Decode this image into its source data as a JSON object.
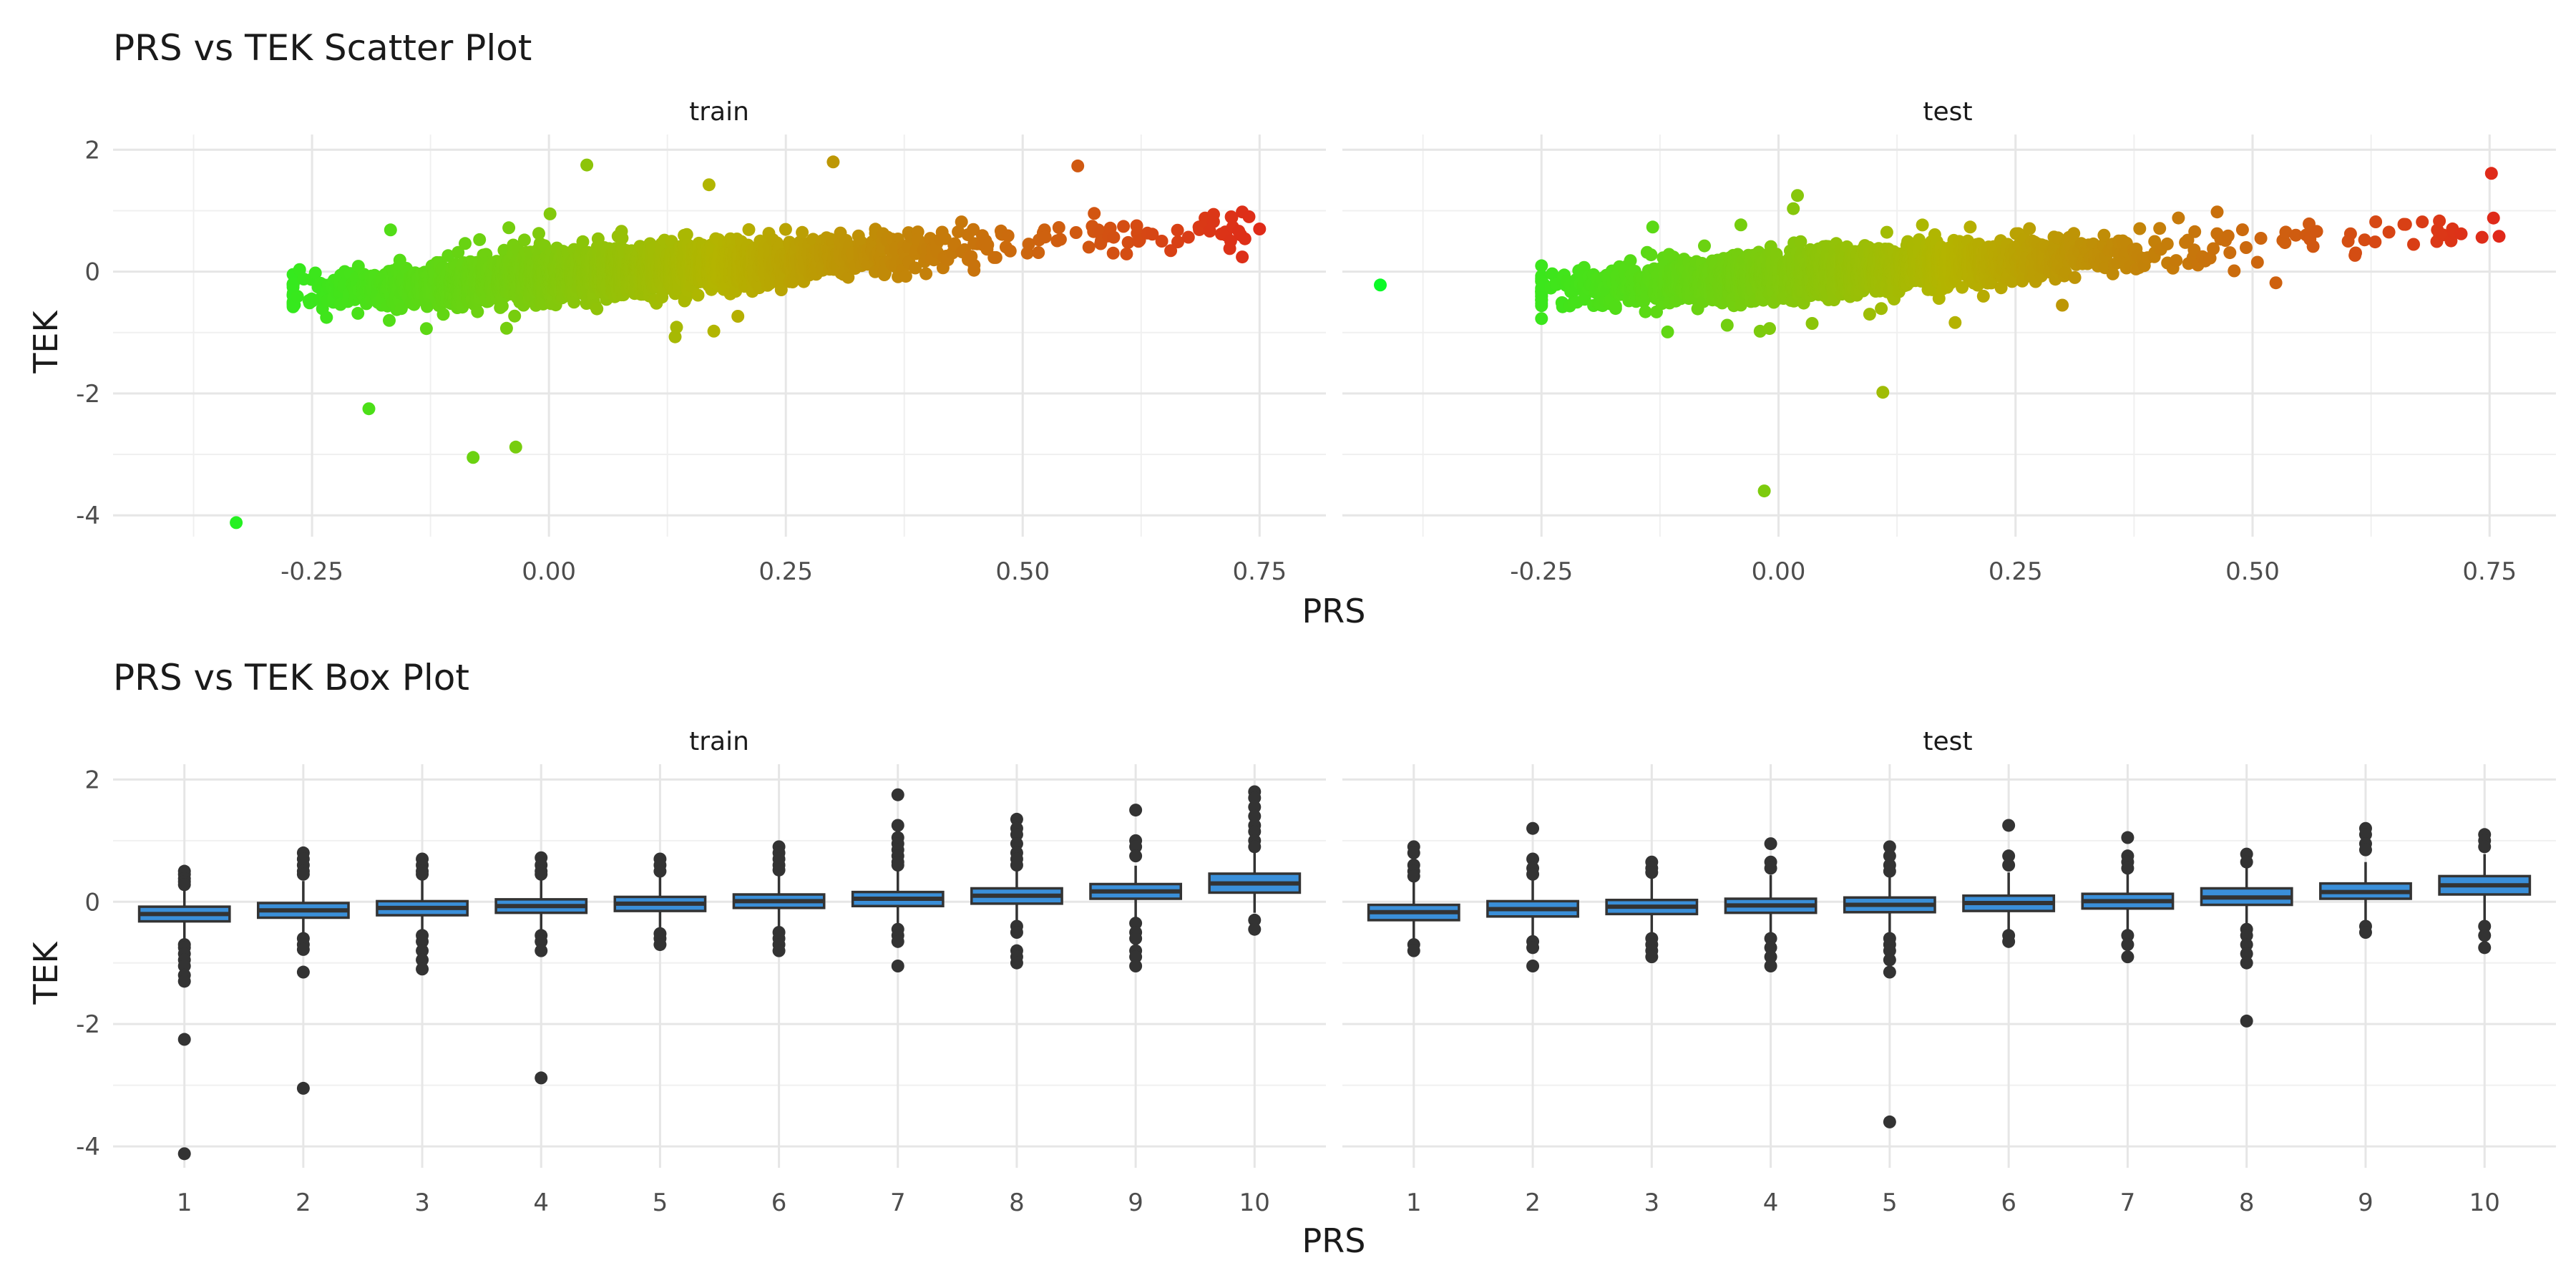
{
  "chart_data": [
    {
      "type": "scatter",
      "title": "PRS vs TEK Scatter Plot",
      "xlabel": "PRS",
      "ylabel": "TEK",
      "facets": [
        "train",
        "test"
      ],
      "xlim": [
        -0.46,
        0.82
      ],
      "ylim": [
        -4.35,
        2.25
      ],
      "x_ticks": [
        "-0.25",
        "0.00",
        "0.25",
        "0.50",
        "0.75"
      ],
      "x_tick_values": [
        -0.25,
        0.0,
        0.25,
        0.5,
        0.75
      ],
      "y_ticks": [
        "2",
        "0",
        "-2",
        "-4"
      ],
      "y_tick_values": [
        2,
        0,
        -2,
        -4
      ],
      "grid": true,
      "color_scale": {
        "low": "#00ff2a",
        "mid": "#b4b400",
        "high": "#e41a1c",
        "mapped_to": "PRS"
      },
      "trend": {
        "slope": 1.05,
        "intercept": -0.08,
        "x_range_train": [
          -0.27,
          0.75
        ],
        "x_range_test": [
          -0.25,
          0.76
        ]
      },
      "notable_points": {
        "train": [
          [
            -0.33,
            -4.12
          ],
          [
            -0.19,
            -2.25
          ],
          [
            -0.08,
            -3.05
          ],
          [
            -0.035,
            -2.88
          ],
          [
            0.04,
            1.75
          ],
          [
            0.3,
            1.8
          ],
          [
            0.72,
            0.9
          ],
          [
            0.75,
            0.7
          ]
        ],
        "test": [
          [
            -0.42,
            -0.22
          ],
          [
            -0.015,
            -3.6
          ],
          [
            0.11,
            -1.98
          ],
          [
            0.76,
            0.58
          ],
          [
            0.72,
            0.62
          ],
          [
            0.02,
            1.25
          ]
        ]
      }
    },
    {
      "type": "box",
      "title": "PRS vs TEK Box Plot",
      "xlabel": "PRS",
      "ylabel": "TEK",
      "facets": [
        "train",
        "test"
      ],
      "categories": [
        "1",
        "2",
        "3",
        "4",
        "5",
        "6",
        "7",
        "8",
        "9",
        "10"
      ],
      "ylim": [
        -4.35,
        2.25
      ],
      "y_ticks": [
        "2",
        "0",
        "-2",
        "-4"
      ],
      "y_tick_values": [
        2,
        0,
        -2,
        -4
      ],
      "box_color": "#3a8fd9",
      "series": [
        {
          "name": "train",
          "q1": [
            -0.32,
            -0.26,
            -0.22,
            -0.18,
            -0.15,
            -0.1,
            -0.07,
            -0.03,
            0.05,
            0.15
          ],
          "median": [
            -0.2,
            -0.14,
            -0.1,
            -0.07,
            -0.03,
            0.01,
            0.05,
            0.1,
            0.17,
            0.3
          ],
          "q3": [
            -0.08,
            -0.02,
            0.01,
            0.04,
            0.08,
            0.12,
            0.16,
            0.22,
            0.29,
            0.46
          ],
          "whisker_low": [
            -0.65,
            -0.56,
            -0.5,
            -0.47,
            -0.45,
            -0.4,
            -0.36,
            -0.3,
            -0.28,
            -0.18
          ],
          "whisker_high": [
            0.25,
            0.34,
            0.37,
            0.38,
            0.41,
            0.45,
            0.52,
            0.54,
            0.59,
            0.82
          ],
          "outliers": [
            [
              0.5,
              0.45,
              0.38,
              0.33,
              0.28,
              -0.7,
              -0.75,
              -0.85,
              -0.95,
              -1.05,
              -1.2,
              -1.3,
              -2.25,
              -4.12
            ],
            [
              0.8,
              0.7,
              0.6,
              0.5,
              0.45,
              -0.6,
              -0.7,
              -0.78,
              -1.15,
              -3.05
            ],
            [
              0.7,
              0.6,
              0.5,
              0.45,
              -0.55,
              -0.65,
              -0.8,
              -0.95,
              -1.1
            ],
            [
              0.72,
              0.6,
              0.5,
              0.45,
              -0.55,
              -0.65,
              -0.8,
              -2.88
            ],
            [
              0.7,
              0.6,
              0.5,
              -0.52,
              -0.6,
              -0.7
            ],
            [
              0.9,
              0.8,
              0.7,
              0.6,
              0.52,
              -0.5,
              -0.6,
              -0.7,
              -0.8
            ],
            [
              1.75,
              1.25,
              1.05,
              0.95,
              0.85,
              0.75,
              0.65,
              0.6,
              -0.45,
              -0.55,
              -0.65,
              -1.05
            ],
            [
              1.35,
              1.2,
              1.1,
              0.95,
              0.8,
              0.7,
              0.6,
              -0.4,
              -0.5,
              -0.8,
              -0.9,
              -1.0
            ],
            [
              1.5,
              1.0,
              0.9,
              0.75,
              -0.35,
              -0.5,
              -0.6,
              -0.8,
              -0.9,
              -1.05
            ],
            [
              1.8,
              1.7,
              1.55,
              1.4,
              1.25,
              1.15,
              1.0,
              0.9,
              -0.3,
              -0.45
            ]
          ]
        },
        {
          "name": "test",
          "q1": [
            -0.3,
            -0.24,
            -0.2,
            -0.18,
            -0.17,
            -0.15,
            -0.11,
            -0.05,
            0.05,
            0.12
          ],
          "median": [
            -0.17,
            -0.12,
            -0.08,
            -0.06,
            -0.05,
            -0.02,
            0.01,
            0.07,
            0.16,
            0.27
          ],
          "q3": [
            -0.05,
            0.01,
            0.03,
            0.05,
            0.07,
            0.1,
            0.13,
            0.22,
            0.3,
            0.42
          ],
          "whisker_low": [
            -0.65,
            -0.58,
            -0.56,
            -0.52,
            -0.52,
            -0.5,
            -0.47,
            -0.4,
            -0.35,
            -0.3
          ],
          "whisker_high": [
            0.35,
            0.4,
            0.42,
            0.44,
            0.46,
            0.48,
            0.5,
            0.55,
            0.65,
            0.78
          ],
          "outliers": [
            [
              0.9,
              0.8,
              0.6,
              0.5,
              0.42,
              -0.7,
              -0.8
            ],
            [
              1.2,
              0.7,
              0.55,
              0.45,
              -0.65,
              -0.75,
              -1.05
            ],
            [
              0.65,
              0.55,
              0.48,
              -0.6,
              -0.7,
              -0.8,
              -0.9
            ],
            [
              0.95,
              0.65,
              0.55,
              -0.6,
              -0.75,
              -0.9,
              -1.05
            ],
            [
              0.9,
              0.75,
              0.6,
              0.5,
              -0.6,
              -0.7,
              -0.8,
              -0.95,
              -1.15,
              -3.6
            ],
            [
              1.25,
              0.75,
              0.6,
              -0.55,
              -0.65
            ],
            [
              1.05,
              0.75,
              0.65,
              0.55,
              -0.55,
              -0.7,
              -0.9
            ],
            [
              0.78,
              0.65,
              -0.45,
              -0.55,
              -0.7,
              -0.85,
              -1.0,
              -1.95
            ],
            [
              1.2,
              1.1,
              0.95,
              0.85,
              -0.4,
              -0.5
            ],
            [
              1.1,
              1.0,
              0.9,
              -0.4,
              -0.55,
              -0.75
            ]
          ]
        }
      ]
    }
  ]
}
